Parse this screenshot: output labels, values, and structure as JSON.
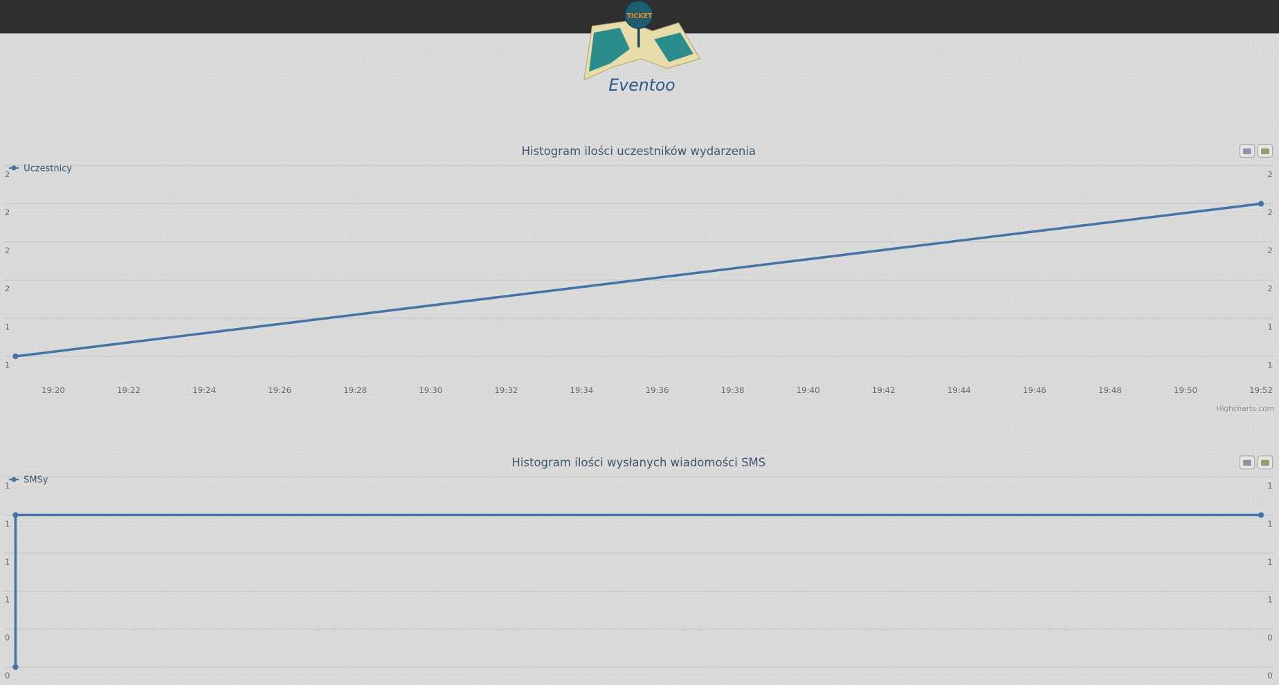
{
  "header": {
    "logo_badge": "TICKET",
    "logo_text": "Eventoo"
  },
  "chart_data": [
    {
      "type": "line",
      "title": "Histogram ilości uczestników wydarzenia",
      "x": [
        "19:19",
        "19:52"
      ],
      "series": [
        {
          "name": "Uczestnicy",
          "color": "#4572a7",
          "values": [
            1,
            2
          ]
        }
      ],
      "xlim": [
        "19:19",
        "19:52"
      ],
      "xticks": [
        "19:20",
        "19:22",
        "19:24",
        "19:26",
        "19:28",
        "19:30",
        "19:32",
        "19:34",
        "19:36",
        "19:38",
        "19:40",
        "19:42",
        "19:44",
        "19:46",
        "19:48",
        "19:50",
        "19:52"
      ],
      "ylim": [
        1,
        2.25
      ],
      "yticks": [
        1,
        {
          "value": 1.25,
          "label": "1"
        },
        {
          "value": 1.5,
          "label": "2"
        },
        {
          "value": 1.75,
          "label": "2"
        },
        2,
        {
          "value": 2.25,
          "label": "2"
        }
      ],
      "grid": true
    },
    {
      "type": "line",
      "title": "Histogram ilości wysłanych wiadomości SMS",
      "x": [
        "19:19",
        "19:19",
        "19:52"
      ],
      "series": [
        {
          "name": "SMSy",
          "color": "#4572a7",
          "values": [
            0,
            1,
            1
          ]
        }
      ],
      "xlim": [
        "19:19",
        "19:52"
      ],
      "ylim": [
        0,
        1.25
      ],
      "yticks": [
        0,
        {
          "value": 0.25,
          "label": "0"
        },
        {
          "value": 0.5,
          "label": "1"
        },
        {
          "value": 0.75,
          "label": "1"
        },
        1,
        {
          "value": 1.25,
          "label": "1"
        }
      ],
      "grid": true
    }
  ],
  "credits": "Highcharts.com"
}
